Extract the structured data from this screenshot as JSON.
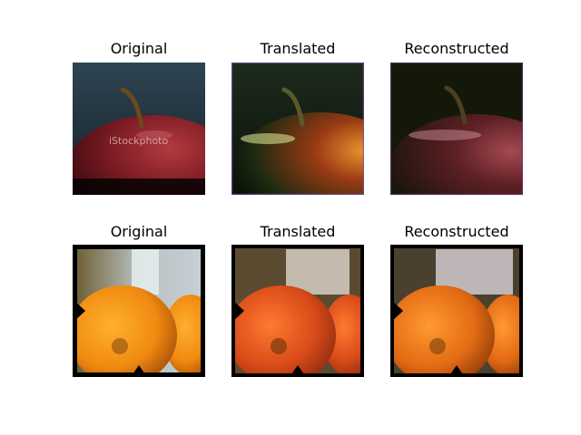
{
  "figure": {
    "rows": [
      {
        "subject": "apple",
        "panels": [
          {
            "title": "Original",
            "image": "apple-original",
            "watermark": "iStockphoto"
          },
          {
            "title": "Translated",
            "image": "apple-translated"
          },
          {
            "title": "Reconstructed",
            "image": "apple-reconstructed"
          }
        ]
      },
      {
        "subject": "orange",
        "panels": [
          {
            "title": "Original",
            "image": "orange-original"
          },
          {
            "title": "Translated",
            "image": "orange-translated"
          },
          {
            "title": "Reconstructed",
            "image": "orange-reconstructed"
          }
        ]
      }
    ]
  }
}
